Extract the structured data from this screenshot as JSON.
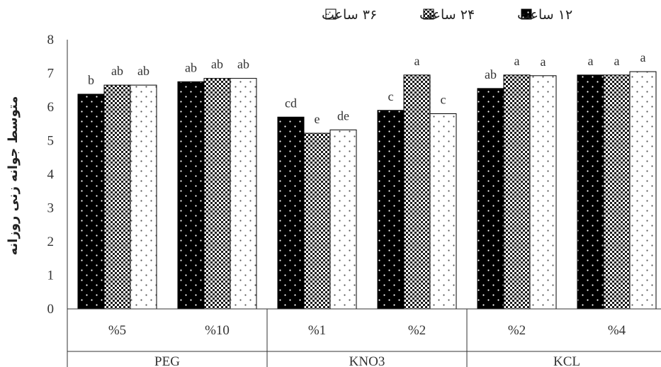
{
  "chart_data": {
    "type": "bar",
    "title": "",
    "xlabel": "",
    "ylabel": "متوسط جوانه زنی روزانه",
    "ylim": [
      0,
      8
    ],
    "yticks": [
      0,
      1,
      2,
      3,
      4,
      5,
      6,
      7,
      8
    ],
    "grid": false,
    "legend_position": "top-center",
    "groups": [
      {
        "label": "PEG",
        "categories": [
          "%5",
          "%10"
        ]
      },
      {
        "label": "KNO3",
        "categories": [
          "%1",
          "%2"
        ]
      },
      {
        "label": "KCL",
        "categories": [
          "%2",
          "%4"
        ]
      }
    ],
    "categories": [
      "%5",
      "%10",
      "%1",
      "%2",
      "%2",
      "%4"
    ],
    "series": [
      {
        "name": "۱۲ ساعت",
        "pattern": "dots-on-black",
        "values": [
          6.38,
          6.75,
          5.7,
          5.9,
          6.55,
          6.95
        ],
        "letters": [
          "b",
          "ab",
          "cd",
          "c",
          "ab",
          "a"
        ]
      },
      {
        "name": "۲۴ ساعت",
        "pattern": "checkered",
        "values": [
          6.65,
          6.85,
          5.22,
          6.95,
          6.95,
          6.95
        ],
        "letters": [
          "ab",
          "ab",
          "e",
          "a",
          "a",
          "a"
        ]
      },
      {
        "name": "۳۶ ساعت",
        "pattern": "dots-on-white",
        "values": [
          6.65,
          6.85,
          5.32,
          5.8,
          6.93,
          7.05
        ],
        "letters": [
          "ab",
          "ab",
          "de",
          "c",
          "a",
          "a"
        ]
      }
    ]
  }
}
